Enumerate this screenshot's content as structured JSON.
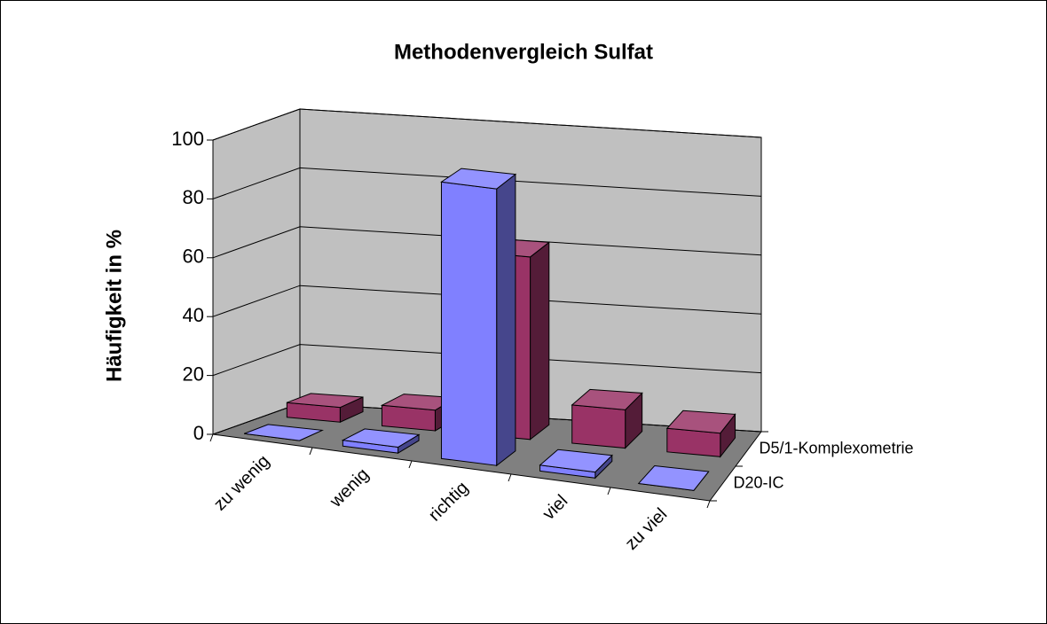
{
  "chart_data": {
    "type": "bar",
    "title": "Methodenvergleich Sulfat",
    "y_label": "Häufigkeit in %",
    "categories": [
      "zu wenig",
      "wenig",
      "richtig",
      "viel",
      "zu viel"
    ],
    "series": [
      {
        "name": "D20-IC",
        "color": "#8080ff",
        "values": [
          0,
          2,
          94,
          2,
          0
        ]
      },
      {
        "name": "D5/1-Komplexometrie",
        "color": "#993366",
        "values": [
          5,
          7,
          62,
          13,
          8
        ]
      }
    ],
    "ylim": [
      0,
      100
    ],
    "yticks": [
      0,
      20,
      40,
      60,
      80,
      100
    ],
    "grid": true
  }
}
